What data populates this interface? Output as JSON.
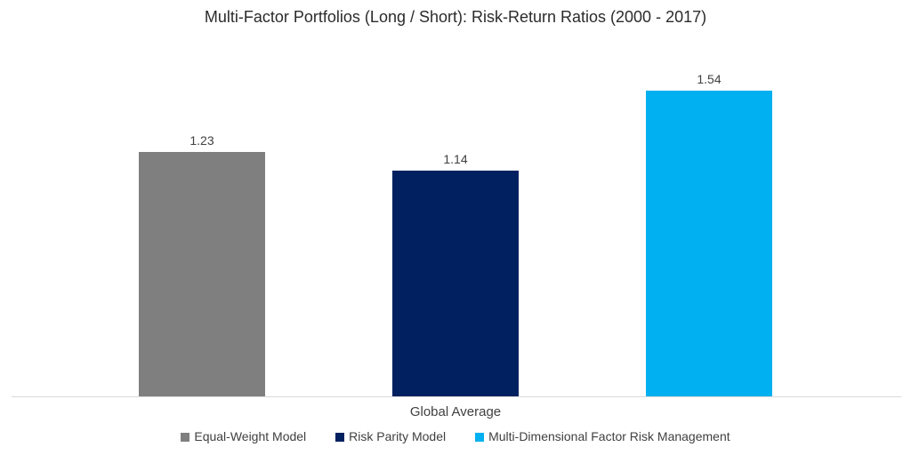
{
  "chart_data": {
    "type": "bar",
    "title": "Multi-Factor Portfolios (Long / Short): Risk-Return Ratios (2000 - 2017)",
    "categories": [
      "Global Average"
    ],
    "series": [
      {
        "name": "Equal-Weight Model",
        "value": 1.23,
        "color": "#7F7F7F"
      },
      {
        "name": "Risk Parity Model",
        "value": 1.14,
        "color": "#002060"
      },
      {
        "name": "Multi-Dimensional Factor Risk Management",
        "value": 1.54,
        "color": "#00B0F0"
      }
    ],
    "value_labels": [
      "1.23",
      "1.14",
      "1.54"
    ],
    "xlabel": "",
    "ylabel": "",
    "ylim": [
      0,
      2.0
    ],
    "grid": false,
    "y_axis_visible": false,
    "legend_position": "bottom",
    "axis_line_color": "#D9D9D9",
    "text_color": "#404040",
    "background_color": "#FFFFFF"
  }
}
